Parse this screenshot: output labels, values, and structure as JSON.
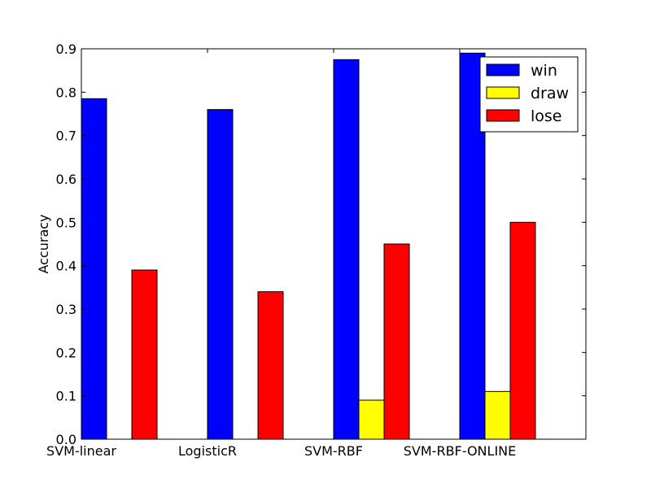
{
  "chart_data": {
    "type": "bar",
    "title": "",
    "xlabel": "",
    "ylabel": "Accuracy",
    "categories": [
      "SVM-linear",
      "LogisticR",
      "SVM-RBF",
      "SVM-RBF-ONLINE"
    ],
    "series": [
      {
        "name": "win",
        "color": "#0000ff",
        "values": [
          0.785,
          0.76,
          0.875,
          0.89
        ]
      },
      {
        "name": "draw",
        "color": "#ffff00",
        "values": [
          0.0,
          0.0,
          0.09,
          0.11
        ]
      },
      {
        "name": "lose",
        "color": "#ff0000",
        "values": [
          0.39,
          0.34,
          0.45,
          0.5
        ]
      }
    ],
    "ylim": [
      0,
      0.9
    ],
    "yticks": [
      "0.0",
      "0.1",
      "0.2",
      "0.3",
      "0.4",
      "0.5",
      "0.6",
      "0.7",
      "0.8",
      "0.9"
    ],
    "grid": false,
    "legend_position": "top-right"
  }
}
